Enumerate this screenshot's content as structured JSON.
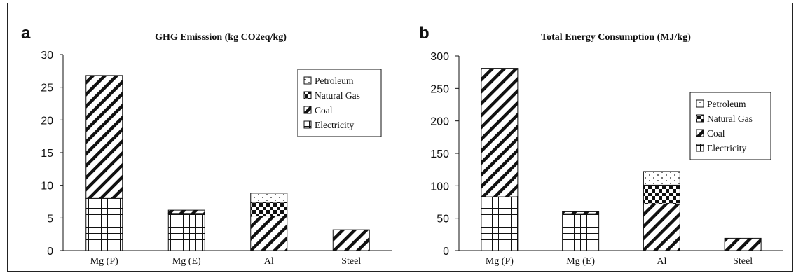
{
  "chart_data": [
    {
      "type": "bar",
      "stacked": true,
      "panel": "a",
      "title": "GHG Emisssion (kg CO2eq/kg)",
      "categories": [
        "Mg (P)",
        "Mg (E)",
        "Al",
        "Steel"
      ],
      "ylim": [
        0,
        30
      ],
      "yticks": [
        0,
        5,
        10,
        15,
        20,
        25,
        30
      ],
      "legend": [
        "Petroleum",
        "Natural Gas",
        "Coal",
        "Electricity"
      ],
      "legend_position": "top-right",
      "series": [
        {
          "name": "Electricity",
          "pattern": "grid",
          "values": [
            8.0,
            5.7,
            0.0,
            0.0
          ]
        },
        {
          "name": "Coal",
          "pattern": "hatch",
          "values": [
            18.8,
            0.5,
            5.3,
            3.2
          ]
        },
        {
          "name": "Natural Gas",
          "pattern": "checker",
          "values": [
            0.0,
            0.0,
            2.1,
            0.0
          ]
        },
        {
          "name": "Petroleum",
          "pattern": "dots",
          "values": [
            0.0,
            0.0,
            1.4,
            0.0
          ]
        }
      ]
    },
    {
      "type": "bar",
      "stacked": true,
      "panel": "b",
      "title": "Total Energy Consumption (MJ/kg)",
      "categories": [
        "Mg (P)",
        "Mg (E)",
        "Al",
        "Steel"
      ],
      "ylim": [
        0,
        300
      ],
      "yticks": [
        0,
        50,
        100,
        150,
        200,
        250,
        300
      ],
      "legend": [
        "Petroleum",
        "Natural Gas",
        "Coal",
        "Electricity"
      ],
      "legend_position": "top-right",
      "series": [
        {
          "name": "Electricity",
          "pattern": "grid",
          "values": [
            83,
            57,
            0,
            0
          ]
        },
        {
          "name": "Coal",
          "pattern": "hatch",
          "values": [
            198,
            3,
            72,
            19
          ]
        },
        {
          "name": "Natural Gas",
          "pattern": "checker",
          "values": [
            0,
            0,
            29,
            0
          ]
        },
        {
          "name": "Petroleum",
          "pattern": "dots",
          "values": [
            0,
            0,
            21,
            0
          ]
        }
      ]
    }
  ]
}
